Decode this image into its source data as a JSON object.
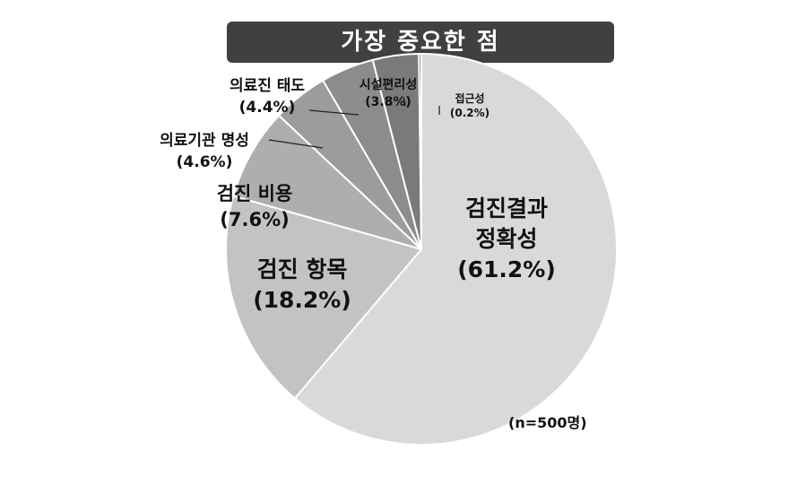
{
  "chart_data": {
    "type": "pie",
    "title": "가장 중요한 점",
    "note": "(n=500명)",
    "slices": [
      {
        "label": "검진결과 정확성",
        "line1": "검진결과",
        "line2": "정확성",
        "pct_label": "(61.2%)",
        "value": 61.2,
        "color": "#d9d9d9"
      },
      {
        "label": "검진 항목",
        "line1": "검진 항목",
        "line2": "",
        "pct_label": "(18.2%)",
        "value": 18.2,
        "color": "#c3c3c3"
      },
      {
        "label": "검진 비용",
        "line1": "검진 비용",
        "line2": "",
        "pct_label": "(7.6%)",
        "value": 7.6,
        "color": "#aeaeae"
      },
      {
        "label": "의료기관 명성",
        "line1": "의료기관 명성",
        "line2": "",
        "pct_label": "(4.6%)",
        "value": 4.6,
        "color": "#9c9c9c"
      },
      {
        "label": "의료진 태도",
        "line1": "의료진 태도",
        "line2": "",
        "pct_label": "(4.4%)",
        "value": 4.4,
        "color": "#8c8c8c"
      },
      {
        "label": "시설편리성",
        "line1": "시설편리성",
        "line2": "",
        "pct_label": "(3.8%)",
        "value": 3.8,
        "color": "#7a7a7a"
      },
      {
        "label": "접근성",
        "line1": "접근성",
        "line2": "",
        "pct_label": "(0.2%)",
        "value": 0.2,
        "color": "#555555"
      }
    ]
  }
}
